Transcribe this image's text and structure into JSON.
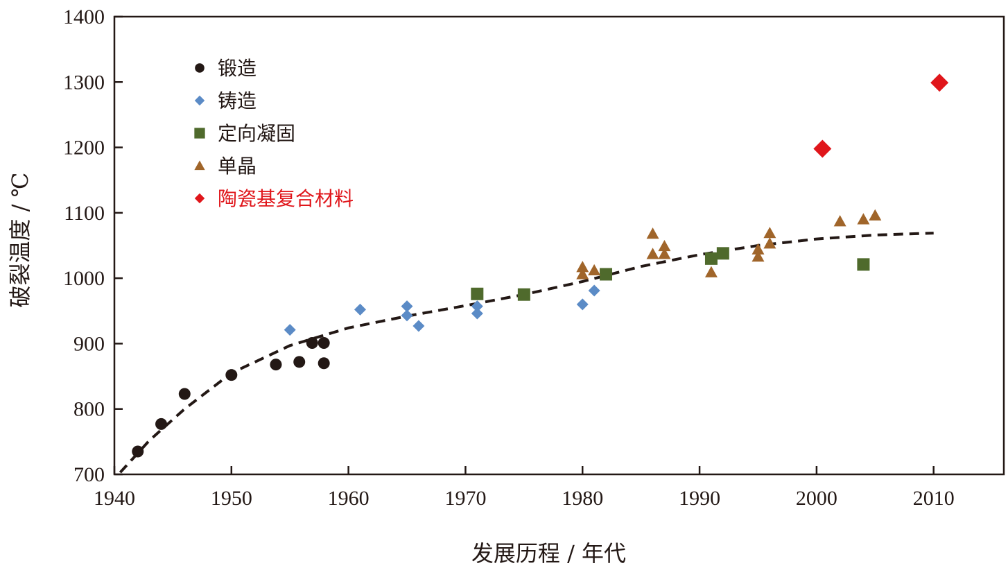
{
  "chart_data": {
    "type": "scatter",
    "xlabel": "发展历程 / 年代",
    "ylabel": "破裂温度 / ℃",
    "xlim": [
      1940,
      2016
    ],
    "ylim": [
      700,
      1400
    ],
    "x_ticks": [
      1940,
      1950,
      1960,
      1970,
      1980,
      1990,
      2000,
      2010
    ],
    "y_ticks": [
      700,
      800,
      900,
      1000,
      1100,
      1200,
      1300,
      1400
    ],
    "grid": false,
    "legend_position": "top-left",
    "series": [
      {
        "name": "锻造",
        "marker": "circle",
        "color": "#231815",
        "points": [
          [
            1942,
            735
          ],
          [
            1944,
            777
          ],
          [
            1946,
            823
          ],
          [
            1950,
            852
          ],
          [
            1953.8,
            868
          ],
          [
            1955.8,
            872
          ],
          [
            1956.9,
            901
          ],
          [
            1957.9,
            901
          ],
          [
            1957.9,
            870
          ]
        ]
      },
      {
        "name": "铸造",
        "marker": "diamond",
        "color": "#5b8bc6",
        "points": [
          [
            1955,
            921
          ],
          [
            1961,
            952
          ],
          [
            1965,
            957
          ],
          [
            1965,
            943
          ],
          [
            1966,
            927
          ],
          [
            1971,
            957
          ],
          [
            1971,
            946
          ],
          [
            1980,
            960
          ],
          [
            1981,
            981
          ]
        ]
      },
      {
        "name": "定向凝固",
        "marker": "square",
        "color": "#4f6a2c",
        "points": [
          [
            1971,
            976
          ],
          [
            1975,
            975
          ],
          [
            1982,
            1006
          ],
          [
            1991,
            1030
          ],
          [
            1992,
            1038
          ],
          [
            2004,
            1021
          ]
        ]
      },
      {
        "name": "单晶",
        "marker": "triangle",
        "color": "#a0652a",
        "points": [
          [
            1980,
            1017
          ],
          [
            1980,
            1006
          ],
          [
            1981,
            1012
          ],
          [
            1986,
            1068
          ],
          [
            1986,
            1037
          ],
          [
            1987,
            1049
          ],
          [
            1987,
            1037
          ],
          [
            1991,
            1009
          ],
          [
            1995,
            1044
          ],
          [
            1995,
            1033
          ],
          [
            1996,
            1069
          ],
          [
            1996,
            1053
          ],
          [
            2002,
            1087
          ],
          [
            2004,
            1090
          ],
          [
            2005,
            1096
          ]
        ]
      },
      {
        "name": "陶瓷基复合材料",
        "marker": "diamond-large",
        "color": "#e0161b",
        "label_color": "#e0161b",
        "points": [
          [
            2000.5,
            1198
          ],
          [
            2010.5,
            1299
          ]
        ]
      }
    ],
    "trend_line": {
      "style": "dashed",
      "color": "#231815",
      "points": [
        [
          1940.5,
          703
        ],
        [
          1943,
          752
        ],
        [
          1946,
          800
        ],
        [
          1950,
          855
        ],
        [
          1955,
          897
        ],
        [
          1960,
          924
        ],
        [
          1965,
          942
        ],
        [
          1970,
          958
        ],
        [
          1975,
          975
        ],
        [
          1980,
          995
        ],
        [
          1985,
          1018
        ],
        [
          1990,
          1036
        ],
        [
          1995,
          1050
        ],
        [
          2000,
          1060
        ],
        [
          2005,
          1066
        ],
        [
          2010,
          1069
        ]
      ]
    }
  }
}
